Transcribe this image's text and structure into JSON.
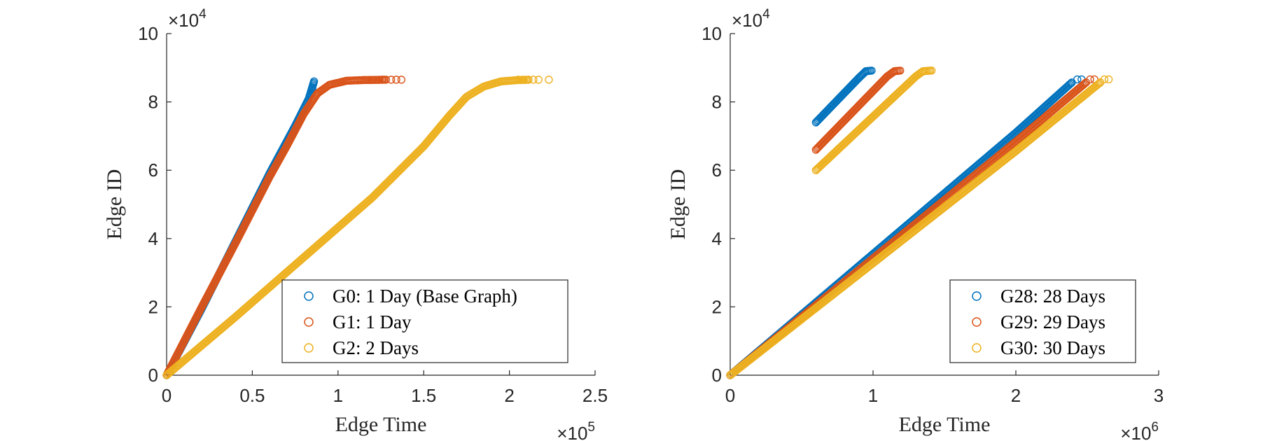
{
  "chart_data": [
    {
      "type": "scatter",
      "title": "",
      "xlabel": "Edge Time",
      "ylabel": "Edge ID",
      "x_exponent": "×10",
      "x_exponent_power": "5",
      "y_exponent": "×10",
      "y_exponent_power": "4",
      "x_scale": 100000,
      "y_scale": 10000,
      "xlim": [
        0,
        250000
      ],
      "ylim": [
        0,
        100000
      ],
      "xticks": [
        0,
        50000,
        100000,
        150000,
        200000,
        250000
      ],
      "xtick_labels": [
        "0",
        "0.5",
        "1",
        "1.5",
        "2",
        "2.5"
      ],
      "yticks": [
        0,
        20000,
        40000,
        60000,
        80000,
        100000
      ],
      "ytick_labels": [
        "0",
        "2",
        "4",
        "6",
        "8",
        "10"
      ],
      "legend_position": "bottom-right",
      "series": [
        {
          "name": "G0: 1 Day (Base Graph)",
          "color": "#0072BD",
          "segments": [
            [
              [
                0,
                0
              ],
              [
                20000,
                19000
              ],
              [
                40000,
                39000
              ],
              [
                60000,
                59000
              ],
              [
                75000,
                73000
              ],
              [
                83000,
                81000
              ],
              [
                86000,
                86000
              ]
            ]
          ],
          "sparse_points": [
            [
              84000,
              82000
            ],
            [
              85000,
              84000
            ],
            [
              86000,
              86000
            ]
          ]
        },
        {
          "name": "G1: 1 Day",
          "color": "#D95319",
          "segments": [
            [
              [
                0,
                0
              ],
              [
                20000,
                19500
              ],
              [
                40000,
                38500
              ],
              [
                60000,
                58000
              ],
              [
                70000,
                67000
              ],
              [
                80000,
                76500
              ],
              [
                88000,
                82500
              ],
              [
                95000,
                85000
              ],
              [
                105000,
                86200
              ],
              [
                115000,
                86400
              ],
              [
                128000,
                86500
              ]
            ]
          ],
          "sparse_points": [
            [
              126000,
              86500
            ],
            [
              128000,
              86500
            ],
            [
              131000,
              86500
            ],
            [
              134000,
              86500
            ],
            [
              137000,
              86500
            ]
          ]
        },
        {
          "name": "G2: 2 Days",
          "color": "#EDB120",
          "segments": [
            [
              [
                0,
                0
              ],
              [
                40000,
                17000
              ],
              [
                80000,
                34500
              ],
              [
                120000,
                52000
              ],
              [
                150000,
                67000
              ],
              [
                165000,
                76000
              ],
              [
                175000,
                81500
              ],
              [
                185000,
                84500
              ],
              [
                195000,
                86000
              ],
              [
                205000,
                86400
              ],
              [
                212000,
                86500
              ]
            ]
          ],
          "sparse_points": [
            [
              205000,
              86500
            ],
            [
              208000,
              86500
            ],
            [
              211000,
              86500
            ],
            [
              214000,
              86500
            ],
            [
              217000,
              86500
            ],
            [
              223000,
              86500
            ]
          ]
        }
      ]
    },
    {
      "type": "scatter",
      "title": "",
      "xlabel": "Edge Time",
      "ylabel": "Edge ID",
      "x_exponent": "×10",
      "x_exponent_power": "6",
      "y_exponent": "×10",
      "y_exponent_power": "4",
      "x_scale": 1000000,
      "y_scale": 10000,
      "xlim": [
        0,
        3000000
      ],
      "ylim": [
        0,
        100000
      ],
      "xticks": [
        0,
        1000000,
        2000000,
        3000000
      ],
      "xtick_labels": [
        "0",
        "1",
        "2",
        "3"
      ],
      "yticks": [
        0,
        20000,
        40000,
        60000,
        80000,
        100000
      ],
      "ytick_labels": [
        "0",
        "2",
        "4",
        "6",
        "8",
        "10"
      ],
      "legend_position": "bottom-right",
      "series": [
        {
          "name": "G28: 28 Days",
          "color": "#0072BD",
          "segments": [
            [
              [
                0,
                0
              ],
              [
                1000000,
                35500
              ],
              [
                2000000,
                71000
              ],
              [
                2400000,
                86000
              ]
            ],
            [
              [
                600000,
                74000
              ],
              [
                900000,
                87000
              ],
              [
                950000,
                89000
              ],
              [
                1000000,
                89200
              ]
            ]
          ],
          "sparse_points": [
            [
              2430000,
              86600
            ],
            [
              2460000,
              86600
            ]
          ]
        },
        {
          "name": "G29: 29 Days",
          "color": "#D95319",
          "segments": [
            [
              [
                0,
                0
              ],
              [
                1000000,
                34200
              ],
              [
                2000000,
                68400
              ],
              [
                2500000,
                86000
              ]
            ],
            [
              [
                600000,
                66000
              ],
              [
                1100000,
                87500
              ],
              [
                1150000,
                89000
              ],
              [
                1200000,
                89200
              ]
            ]
          ],
          "sparse_points": [
            [
              2520000,
              86600
            ],
            [
              2550000,
              86600
            ]
          ]
        },
        {
          "name": "G30: 30 Days",
          "color": "#EDB120",
          "segments": [
            [
              [
                0,
                0
              ],
              [
                1000000,
                32800
              ],
              [
                2000000,
                65600
              ],
              [
                2600000,
                86000
              ]
            ],
            [
              [
                600000,
                60000
              ],
              [
                1300000,
                87500
              ],
              [
                1350000,
                89000
              ],
              [
                1420000,
                89200
              ]
            ]
          ],
          "sparse_points": [
            [
              2620000,
              86600
            ],
            [
              2650000,
              86600
            ]
          ]
        }
      ]
    }
  ]
}
